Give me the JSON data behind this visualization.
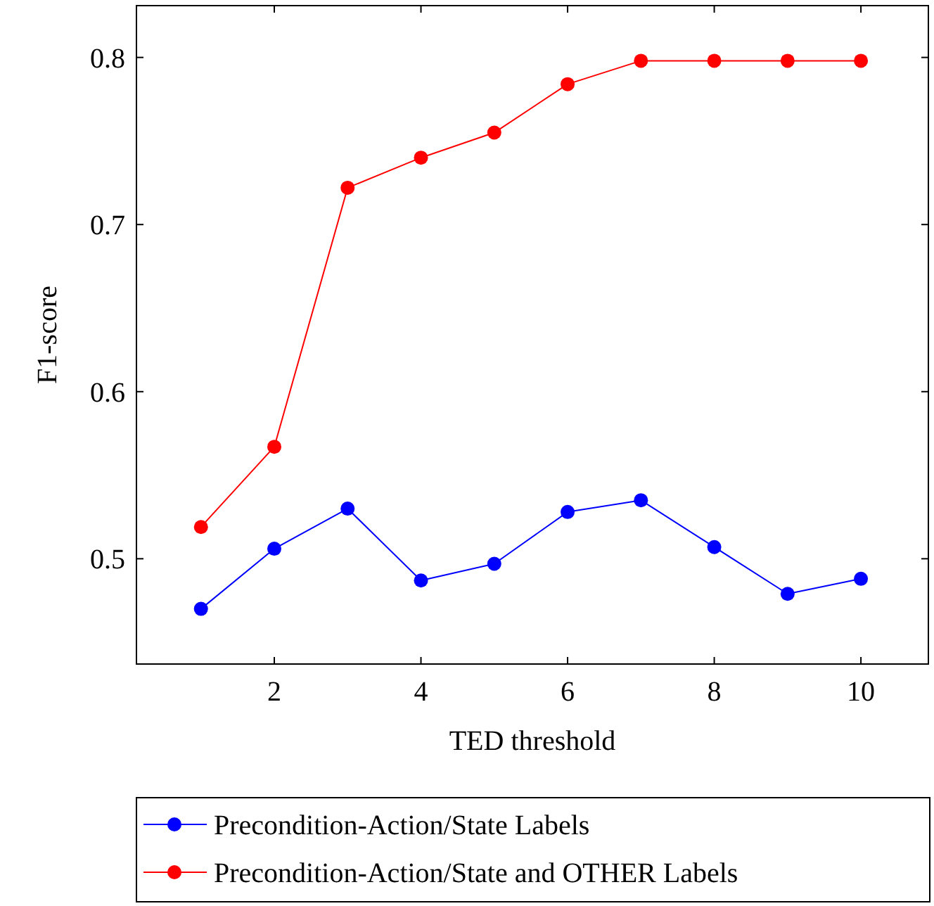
{
  "chart_data": {
    "type": "line",
    "xlabel": "TED threshold",
    "ylabel": "F1-score",
    "x": [
      1,
      2,
      3,
      4,
      5,
      6,
      7,
      8,
      9,
      10
    ],
    "series": [
      {
        "name": "Precondition-Action/State Labels",
        "color": "#0000ff",
        "values": [
          0.47,
          0.506,
          0.53,
          0.487,
          0.497,
          0.528,
          0.535,
          0.507,
          0.479,
          0.488
        ]
      },
      {
        "name": "Precondition-Action/State and OTHER Labels",
        "color": "#ff0000",
        "values": [
          0.519,
          0.567,
          0.722,
          0.74,
          0.755,
          0.784,
          0.798,
          0.798,
          0.798,
          0.798
        ]
      }
    ],
    "xlim": [
      0.12,
      10.92
    ],
    "ylim": [
      0.437,
      0.831
    ],
    "xticks": [
      2,
      4,
      6,
      8,
      10
    ],
    "yticks": [
      0.5,
      0.6,
      0.7,
      0.8
    ],
    "marker": "circle",
    "line_style": "solid",
    "grid": false,
    "legend": "bottom"
  }
}
